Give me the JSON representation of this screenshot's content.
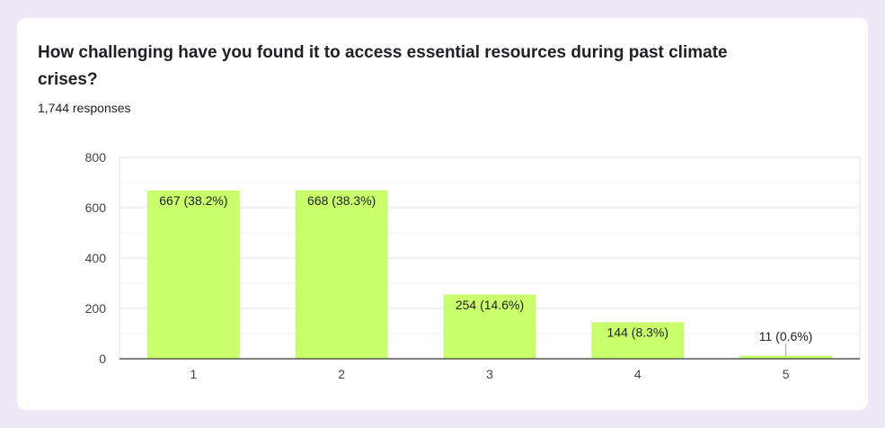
{
  "question": {
    "title": "How challenging have you found it to access essential resources during past climate crises?",
    "responses_text": "1,744 responses"
  },
  "colors": {
    "bar": "#c8ff6b",
    "bar_stroke": "#b7ef57",
    "background": "#ede9f7",
    "card": "#ffffff"
  },
  "chart_data": {
    "type": "bar",
    "title": "How challenging have you found it to access essential resources during past climate crises?",
    "categories": [
      "1",
      "2",
      "3",
      "4",
      "5"
    ],
    "values": [
      667,
      668,
      254,
      144,
      11
    ],
    "data_labels": [
      "667 (38.2%)",
      "668 (38.3%)",
      "254 (14.6%)",
      "144 (8.3%)",
      "11 (0.6%)"
    ],
    "yticks": [
      0,
      200,
      400,
      600,
      800
    ],
    "ylim": [
      0,
      800
    ],
    "xlabel": "",
    "ylabel": "",
    "grid": true,
    "legend": "none"
  }
}
